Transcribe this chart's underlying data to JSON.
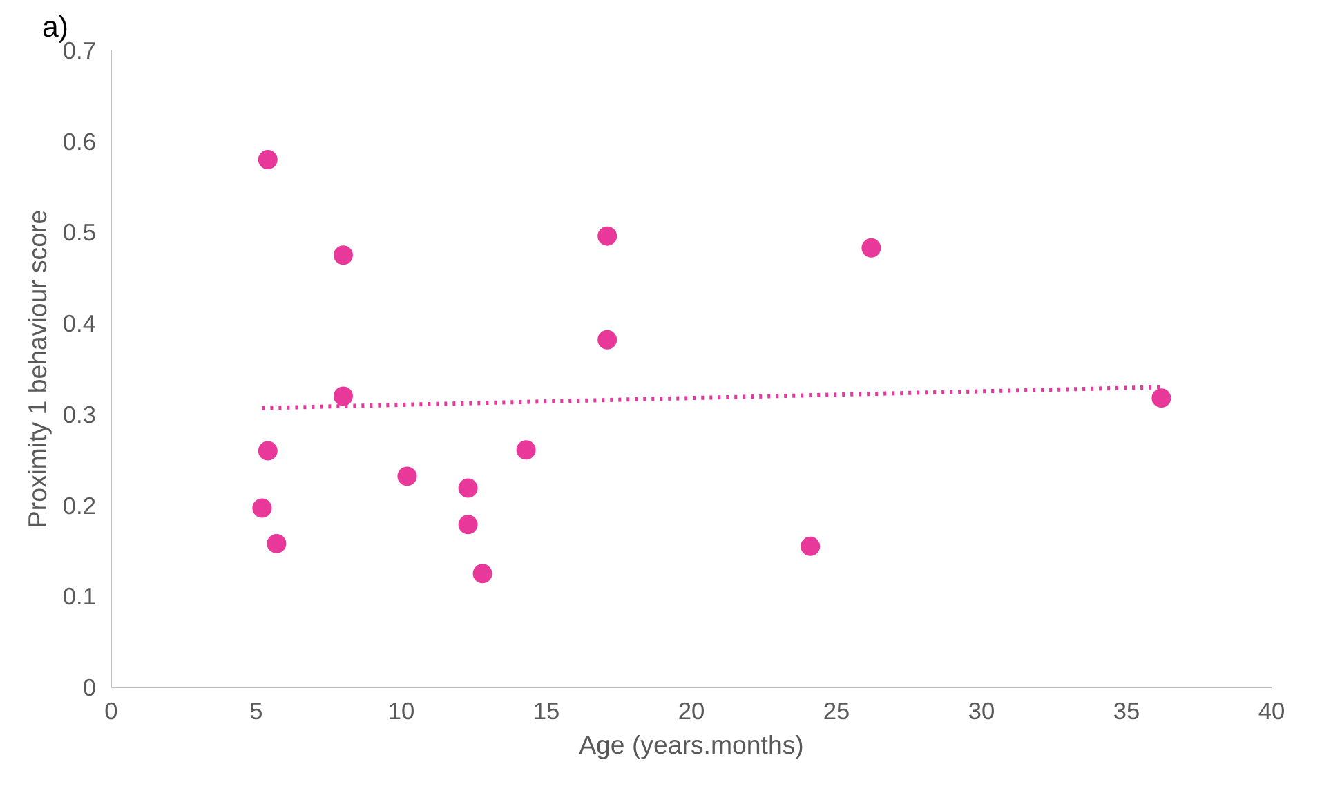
{
  "chart_data": {
    "type": "scatter",
    "xlabel": "Age (years.months)",
    "ylabel": "Proximity 1 behaviour score",
    "annotations": [
      "a)"
    ],
    "xlim": [
      0,
      40
    ],
    "xticks": [
      0,
      5,
      10,
      15,
      20,
      25,
      30,
      35,
      40
    ],
    "ylim": [
      0,
      0.7
    ],
    "yticks": [
      0,
      0.1,
      0.2,
      0.3,
      0.4,
      0.5,
      0.6,
      0.7
    ],
    "grid": false,
    "series": [
      {
        "marker": "circle",
        "color": "#e8399a",
        "x": [
          5.4,
          8.0,
          8.0,
          5.4,
          5.2,
          5.7,
          10.2,
          12.3,
          12.3,
          12.8,
          14.3,
          17.1,
          17.1,
          24.1,
          26.2,
          36.2
        ],
        "values": [
          0.58,
          0.475,
          0.32,
          0.26,
          0.197,
          0.158,
          0.232,
          0.219,
          0.179,
          0.125,
          0.261,
          0.496,
          0.382,
          0.155,
          0.483,
          0.318
        ]
      },
      {
        "type": "line",
        "line_style": "dotted",
        "color": "#e8399a",
        "x": [
          5.2,
          36.2
        ],
        "values": [
          0.307,
          0.33
        ]
      }
    ]
  }
}
